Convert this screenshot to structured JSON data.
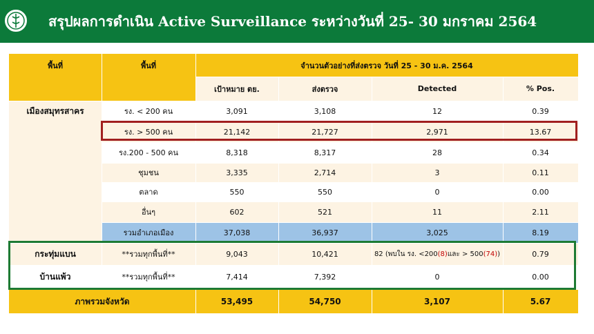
{
  "header": {
    "title": "สรุปผลการดำเนิน Active Surveillance ระหว่างวันที่ 25- 30 มกราคม 2564",
    "banner_color": "#0c7a3a",
    "logo_icon": "moph-seal-icon"
  },
  "table": {
    "header": {
      "col_area": "พื้นที่",
      "col_subarea": "พื้นที่",
      "group_title": "จำนวนตัวอย่างที่ส่งตรวจ วันที่ 25 - 30 ม.ค. 2564",
      "col_target": "เป้าหมาย ตย.",
      "col_sent": "ส่งตรวจ",
      "col_detected": "Detected",
      "col_pos": "% Pos."
    },
    "samut_sakhon_label": "เมืองสมุทรสาคร",
    "rows": [
      {
        "sub": "รง. < 200 คน",
        "target": "3,091",
        "sent": "3,108",
        "detected": "12",
        "pos": "0.39"
      },
      {
        "sub": "รง. > 500 คน",
        "target": "21,142",
        "sent": "21,727",
        "detected": "2,971",
        "pos": "13.67"
      },
      {
        "sub": "รง.200 - 500 คน",
        "target": "8,318",
        "sent": "8,317",
        "detected": "28",
        "pos": "0.34"
      },
      {
        "sub": "ชุมชน",
        "target": "3,335",
        "sent": "2,714",
        "detected": "3",
        "pos": "0.11"
      },
      {
        "sub": "ตลาด",
        "target": "550",
        "sent": "550",
        "detected": "0",
        "pos": "0.00"
      },
      {
        "sub": "อื่นๆ",
        "target": "602",
        "sent": "521",
        "detected": "11",
        "pos": "2.11"
      }
    ],
    "subtotal": {
      "label": "รวมอำเภอเมือง",
      "target": "37,038",
      "sent": "36,937",
      "detected": "3,025",
      "pos": "8.19"
    },
    "krathum_baen": {
      "area": "กระทุ่มแบน",
      "sub": "**รวมทุกพื้นที่**",
      "target": "9,043",
      "sent": "10,421",
      "detected_prefix": "82 (พบใน รง. <200 ",
      "detected_a": "(8)",
      "detected_mid": " และ > 500 ",
      "detected_b": "(74)",
      "detected_suffix": ")",
      "pos": "0.79"
    },
    "ban_phaeo": {
      "area": "บ้านแพ้ว",
      "sub": "**รวมทุกพื้นที่**",
      "target": "7,414",
      "sent": "7,392",
      "detected": "0",
      "pos": "0.00"
    },
    "province_total": {
      "label": "ภาพรวมจังหวัด",
      "target": "53,495",
      "sent": "54,750",
      "detected": "3,107",
      "pos": "5.67"
    }
  },
  "colors": {
    "header_yellow": "#f6c313",
    "row_light": "#fdf3e3",
    "subtotal_blue": "#9dc3e6",
    "highlight_red": "#a11f1f",
    "highlight_green": "#1d7a33"
  }
}
